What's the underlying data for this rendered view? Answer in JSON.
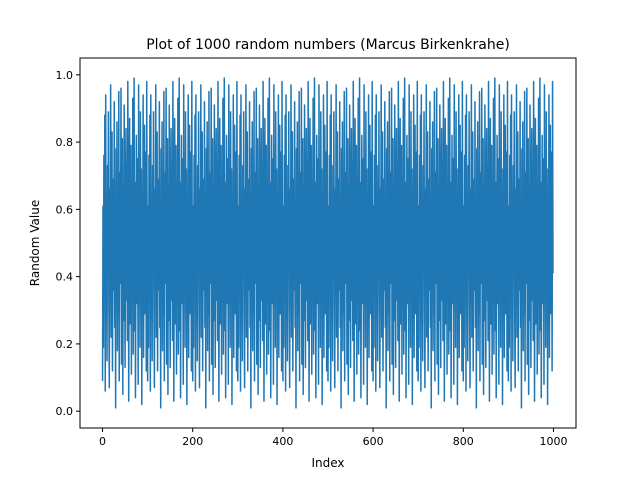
{
  "chart_data": {
    "type": "line",
    "title": "Plot of 1000 random numbers (Marcus Birkenkrahe)",
    "xlabel": "Index",
    "ylabel": "Random Value",
    "xlim": [
      -50,
      1050
    ],
    "ylim": [
      -0.05,
      1.05
    ],
    "xticks": [
      0,
      200,
      400,
      600,
      800,
      1000
    ],
    "xtick_labels": [
      "0",
      "200",
      "400",
      "600",
      "800",
      "1000"
    ],
    "yticks": [
      0.0,
      0.2,
      0.4,
      0.6,
      0.8,
      1.0
    ],
    "ytick_labels": [
      "0.0",
      "0.2",
      "0.4",
      "0.6",
      "0.8",
      "1.0"
    ],
    "grid": false,
    "series": [
      {
        "color": "#1f77b4",
        "x_start": 0,
        "x_step": 1,
        "count": 1000,
        "values": [
          0.09,
          0.61,
          0.19,
          0.76,
          0.35,
          0.88,
          0.06,
          0.94,
          0.28,
          0.52,
          0.15,
          0.73,
          0.41,
          0.89,
          0.31,
          0.07,
          0.66,
          0.48,
          0.97,
          0.22,
          0.58,
          0.83,
          0.12,
          0.44,
          0.69,
          0.36,
          0.92,
          0.25,
          0.54,
          0.01,
          0.78,
          0.47,
          0.86,
          0.18,
          0.63,
          0.29,
          0.95,
          0.09,
          0.71,
          0.38,
          0.56,
          0.96,
          0.14,
          0.43,
          0.81,
          0.05,
          0.67,
          0.27,
          0.91,
          0.49,
          0.13,
          0.59,
          0.84,
          0.33,
          0.74,
          0.21,
          0.98,
          0.62,
          0.03,
          0.45,
          0.87,
          0.26,
          0.53,
          0.79,
          0.11,
          0.65,
          0.39,
          0.93,
          0.17,
          0.55,
          0.99,
          0.24,
          0.68,
          0.04,
          0.42,
          0.82,
          0.32,
          0.75,
          0.51,
          0.08,
          0.97,
          0.36,
          0.61,
          0.19,
          0.89,
          0.46,
          0.72,
          0.02,
          0.57,
          0.35,
          0.94,
          0.16,
          0.64,
          0.85,
          0.29,
          0.49,
          0.77,
          0.12,
          0.98,
          0.41
        ]
      }
    ]
  }
}
